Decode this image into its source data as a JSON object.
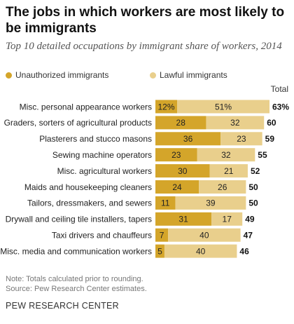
{
  "title": "The jobs in which workers are most likely to be immigrants",
  "subtitle": "Top 10 detailed occupations by immigrant share of workers, 2014",
  "legend": {
    "unauthorized": "Unauthorized immigrants",
    "lawful": "Lawful immigrants"
  },
  "total_header": "Total",
  "notes": {
    "note": "Note: Totals calculated prior to rounding.",
    "source": "Source: Pew Research Center estimates."
  },
  "brand": "PEW RESEARCH CENTER",
  "colors": {
    "unauthorized": "#D4A52A",
    "lawful": "#E9CF8C",
    "bar_text": "#222222",
    "total_text": "#111111"
  },
  "chart_data": {
    "type": "bar",
    "orientation": "horizontal",
    "stacked": true,
    "categories": [
      "Misc. personal appearance workers",
      "Graders, sorters of agricultural products",
      "Plasterers and stucco masons",
      "Sewing machine operators",
      "Misc. agricultural workers",
      "Maids and housekeeping cleaners",
      "Tailors, dressmakers, and sewers",
      "Drywall and ceiling tile installers, tapers",
      "Taxi drivers and chauffeurs",
      "Misc. media and communication workers"
    ],
    "series": [
      {
        "name": "Unauthorized immigrants",
        "values": [
          12,
          28,
          36,
          23,
          30,
          24,
          11,
          31,
          7,
          5
        ],
        "labels": [
          "12%",
          "28",
          "36",
          "23",
          "30",
          "24",
          "11",
          "31",
          "7",
          "5"
        ]
      },
      {
        "name": "Lawful immigrants",
        "values": [
          51,
          32,
          23,
          32,
          21,
          26,
          39,
          17,
          40,
          40
        ],
        "labels": [
          "51%",
          "32",
          "23",
          "32",
          "21",
          "26",
          "39",
          "17",
          "40",
          "40"
        ]
      }
    ],
    "totals": [
      63,
      60,
      59,
      55,
      52,
      50,
      50,
      49,
      47,
      46
    ],
    "total_labels": [
      "63%",
      "60",
      "59",
      "55",
      "52",
      "50",
      "50",
      "49",
      "47",
      "46"
    ],
    "xlim": [
      0,
      63
    ],
    "unit": "%"
  }
}
